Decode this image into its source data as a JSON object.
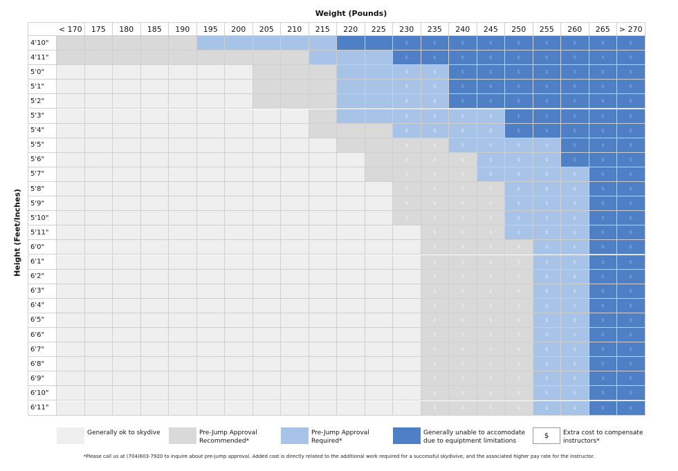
{
  "chart_data": {
    "type": "heatmap",
    "xlabel": "Weight (Pounds)",
    "ylabel": "Height (Feet/Inches)",
    "columns": [
      "< 170",
      "175",
      "180",
      "185",
      "190",
      "195",
      "200",
      "205",
      "210",
      "215",
      "220",
      "225",
      "230",
      "235",
      "240",
      "245",
      "250",
      "255",
      "260",
      "265",
      "> 270"
    ],
    "rows": [
      "4'10\"",
      "4'11\"",
      "5'0\"",
      "5'1\"",
      "5'2\"",
      "5'3\"",
      "5'4\"",
      "5'5\"",
      "5'6\"",
      "5'7\"",
      "5'8\"",
      "5'9\"",
      "5'10\"",
      "5'11\"",
      "6'0\"",
      "6'1\"",
      "6'2\"",
      "6'3\"",
      "6'4\"",
      "6'5\"",
      "6'6\"",
      "6'7\"",
      "6'8\"",
      "6'9\"",
      "6'10\"",
      "6'11\""
    ],
    "categories": {
      "0": "Generally ok to skydive",
      "1": "Pre-Jump Approval Recommended*",
      "2": "Pre-Jump Approval Required*",
      "3": "Generally unable to accomodate due to equiptment limitations"
    },
    "colors": {
      "0": "#efefef",
      "1": "#d9d9d9",
      "2": "#a7c3e8",
      "3": "#4f80c6"
    },
    "cost_symbol": "$",
    "cost_note": "Extra cost to compensate instructors*",
    "first_cost_column": "230",
    "bands": [
      [
        [
          "1",
          0,
          4
        ],
        [
          "2",
          5,
          9
        ],
        [
          "3",
          10,
          20
        ]
      ],
      [
        [
          "1",
          0,
          8
        ],
        [
          "2",
          9,
          11
        ],
        [
          "3",
          12,
          20
        ]
      ],
      [
        [
          "0",
          0,
          6
        ],
        [
          "1",
          7,
          9
        ],
        [
          "2",
          10,
          13
        ],
        [
          "3",
          14,
          20
        ]
      ],
      [
        [
          "0",
          0,
          6
        ],
        [
          "1",
          7,
          9
        ],
        [
          "2",
          10,
          13
        ],
        [
          "3",
          14,
          20
        ]
      ],
      [
        [
          "0",
          0,
          6
        ],
        [
          "1",
          7,
          9
        ],
        [
          "2",
          10,
          13
        ],
        [
          "3",
          14,
          20
        ]
      ],
      [
        [
          "0",
          0,
          8
        ],
        [
          "1",
          9,
          9
        ],
        [
          "2",
          10,
          15
        ],
        [
          "3",
          16,
          20
        ]
      ],
      [
        [
          "0",
          0,
          8
        ],
        [
          "1",
          9,
          11
        ],
        [
          "2",
          12,
          15
        ],
        [
          "3",
          16,
          20
        ]
      ],
      [
        [
          "0",
          0,
          9
        ],
        [
          "1",
          10,
          13
        ],
        [
          "2",
          14,
          17
        ],
        [
          "3",
          18,
          20
        ]
      ],
      [
        [
          "0",
          0,
          10
        ],
        [
          "1",
          11,
          14
        ],
        [
          "2",
          15,
          17
        ],
        [
          "3",
          18,
          20
        ]
      ],
      [
        [
          "0",
          0,
          10
        ],
        [
          "1",
          11,
          14
        ],
        [
          "2",
          15,
          18
        ],
        [
          "3",
          19,
          20
        ]
      ],
      [
        [
          "0",
          0,
          11
        ],
        [
          "1",
          12,
          15
        ],
        [
          "2",
          16,
          18
        ],
        [
          "3",
          19,
          20
        ]
      ],
      [
        [
          "0",
          0,
          11
        ],
        [
          "1",
          12,
          15
        ],
        [
          "2",
          16,
          18
        ],
        [
          "3",
          19,
          20
        ]
      ],
      [
        [
          "0",
          0,
          11
        ],
        [
          "1",
          12,
          15
        ],
        [
          "2",
          16,
          18
        ],
        [
          "3",
          19,
          20
        ]
      ],
      [
        [
          "0",
          0,
          12
        ],
        [
          "1",
          13,
          15
        ],
        [
          "2",
          16,
          18
        ],
        [
          "3",
          19,
          20
        ]
      ],
      [
        [
          "0",
          0,
          12
        ],
        [
          "1",
          13,
          16
        ],
        [
          "2",
          17,
          18
        ],
        [
          "3",
          19,
          20
        ]
      ],
      [
        [
          "0",
          0,
          12
        ],
        [
          "1",
          13,
          16
        ],
        [
          "2",
          17,
          18
        ],
        [
          "3",
          19,
          20
        ]
      ],
      [
        [
          "0",
          0,
          12
        ],
        [
          "1",
          13,
          16
        ],
        [
          "2",
          17,
          18
        ],
        [
          "3",
          19,
          20
        ]
      ],
      [
        [
          "0",
          0,
          12
        ],
        [
          "1",
          13,
          16
        ],
        [
          "2",
          17,
          18
        ],
        [
          "3",
          19,
          20
        ]
      ],
      [
        [
          "0",
          0,
          12
        ],
        [
          "1",
          13,
          16
        ],
        [
          "2",
          17,
          18
        ],
        [
          "3",
          19,
          20
        ]
      ],
      [
        [
          "0",
          0,
          12
        ],
        [
          "1",
          13,
          16
        ],
        [
          "2",
          17,
          18
        ],
        [
          "3",
          19,
          20
        ]
      ],
      [
        [
          "0",
          0,
          12
        ],
        [
          "1",
          13,
          16
        ],
        [
          "2",
          17,
          18
        ],
        [
          "3",
          19,
          20
        ]
      ],
      [
        [
          "0",
          0,
          12
        ],
        [
          "1",
          13,
          16
        ],
        [
          "2",
          17,
          18
        ],
        [
          "3",
          19,
          20
        ]
      ],
      [
        [
          "0",
          0,
          12
        ],
        [
          "1",
          13,
          16
        ],
        [
          "2",
          17,
          18
        ],
        [
          "3",
          19,
          20
        ]
      ],
      [
        [
          "0",
          0,
          12
        ],
        [
          "1",
          13,
          16
        ],
        [
          "2",
          17,
          18
        ],
        [
          "3",
          19,
          20
        ]
      ],
      [
        [
          "0",
          0,
          12
        ],
        [
          "1",
          13,
          16
        ],
        [
          "2",
          17,
          18
        ],
        [
          "3",
          19,
          20
        ]
      ],
      [
        [
          "0",
          0,
          12
        ],
        [
          "1",
          13,
          16
        ],
        [
          "2",
          17,
          18
        ],
        [
          "3",
          19,
          20
        ]
      ]
    ]
  },
  "legend": [
    {
      "key": "0",
      "label": "Generally ok to skydive"
    },
    {
      "key": "1",
      "label": "Pre-Jump Approval Recommended*"
    },
    {
      "key": "2",
      "label": "Pre-Jump Approval Required*"
    },
    {
      "key": "3",
      "label": "Generally unable to accomodate due to equiptment limitations"
    },
    {
      "key": "cost",
      "symbol": "$",
      "label": "Extra cost to compensate instructors*"
    }
  ],
  "footnote": "*Please call us at (704)603-7920 to inquire about pre-jump approval. Added cost is directly related to the additional work required for a successful skydivive, and the associated higher pay rate for the instructor."
}
